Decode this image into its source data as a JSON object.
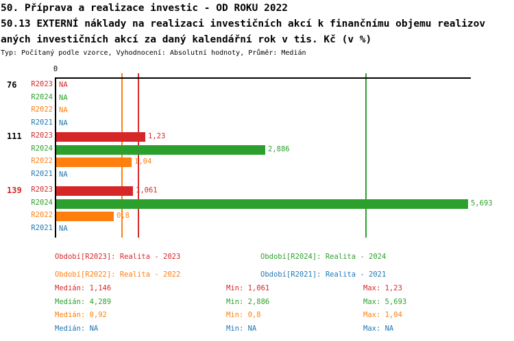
{
  "title": {
    "line1": "50. Příprava a realizace investic - OD ROKU 2022",
    "line2": "50.13 EXTERNÍ náklady na realizaci investičních akcí k finančnímu objemu realizov",
    "line3": "aných investičních akcí za daný kalendářní rok v tis. Kč (v %)",
    "meta": "Typ: Počítaný podle vzorce, Vyhodnocení: Absolutní hodnoty, Průměr: Medián"
  },
  "colors": {
    "R2023": "#d62728",
    "R2024": "#2ca02c",
    "R2022": "#ff7f0e",
    "R2021": "#1f77b4",
    "axis": "#000000",
    "group_label_default": "#000000",
    "group_label_alert": "#d62728"
  },
  "chart_data": {
    "type": "bar",
    "orientation": "horizontal",
    "xlim": [
      0,
      5.74
    ],
    "zero_tick_label": "0",
    "na_text": "NA",
    "grid": false,
    "series_order": [
      "R2023",
      "R2024",
      "R2022",
      "R2021"
    ],
    "groups": [
      {
        "label": "76",
        "label_style": "default",
        "rows": [
          {
            "series": "R2023",
            "value": null,
            "display": "NA"
          },
          {
            "series": "R2024",
            "value": null,
            "display": "NA"
          },
          {
            "series": "R2022",
            "value": null,
            "display": "NA"
          },
          {
            "series": "R2021",
            "value": null,
            "display": "NA"
          }
        ]
      },
      {
        "label": "111",
        "label_style": "default",
        "rows": [
          {
            "series": "R2023",
            "value": 1.23,
            "display": "1,23"
          },
          {
            "series": "R2024",
            "value": 2.886,
            "display": "2,886"
          },
          {
            "series": "R2022",
            "value": 1.04,
            "display": "1,04"
          },
          {
            "series": "R2021",
            "value": null,
            "display": "NA"
          }
        ]
      },
      {
        "label": "139",
        "label_style": "alert",
        "rows": [
          {
            "series": "R2023",
            "value": 1.061,
            "display": "1,061"
          },
          {
            "series": "R2024",
            "value": 5.693,
            "display": "5,693"
          },
          {
            "series": "R2022",
            "value": 0.8,
            "display": "0,8"
          },
          {
            "series": "R2021",
            "value": null,
            "display": "NA"
          }
        ]
      }
    ],
    "median_lines": [
      {
        "series": "R2023",
        "value": 1.146
      },
      {
        "series": "R2024",
        "value": 4.289
      },
      {
        "series": "R2022",
        "value": 0.92
      }
    ]
  },
  "legend": [
    {
      "series": "R2023",
      "label": "Období[R2023]: Realita - 2023"
    },
    {
      "series": "R2024",
      "label": "Období[R2024]: Realita - 2024"
    },
    {
      "series": "R2022",
      "label": "Období[R2022]: Realita - 2022"
    },
    {
      "series": "R2021",
      "label": "Období[R2021]: Realita - 2021"
    }
  ],
  "stats_labels": {
    "median": "Medián:",
    "min": "Min:",
    "max": "Max:"
  },
  "stats": [
    {
      "series": "R2023",
      "median": "1,146",
      "min": "1,061",
      "max": "1,23"
    },
    {
      "series": "R2024",
      "median": "4,289",
      "min": "2,886",
      "max": "5,693"
    },
    {
      "series": "R2022",
      "median": "0,92",
      "min": "0,8",
      "max": "1,04"
    },
    {
      "series": "R2021",
      "median": "NA",
      "min": "NA",
      "max": "NA"
    }
  ]
}
